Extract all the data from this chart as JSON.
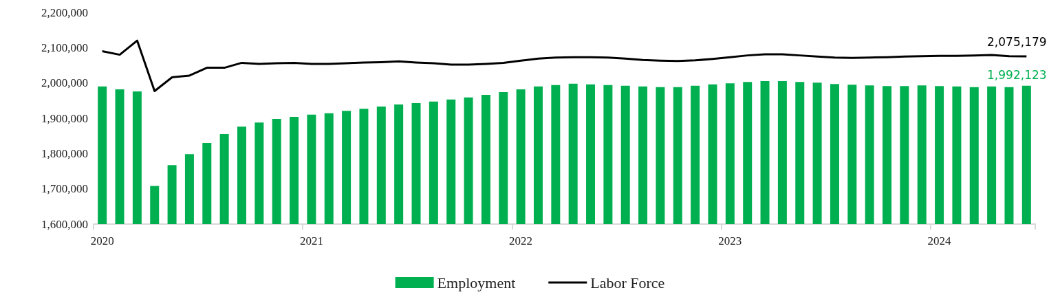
{
  "chart_data": {
    "type": "bar",
    "categories": [
      "2020",
      null,
      null,
      null,
      null,
      null,
      null,
      null,
      null,
      null,
      null,
      null,
      "2021",
      null,
      null,
      null,
      null,
      null,
      null,
      null,
      null,
      null,
      null,
      null,
      "2022",
      null,
      null,
      null,
      null,
      null,
      null,
      null,
      null,
      null,
      null,
      null,
      "2023",
      null,
      null,
      null,
      null,
      null,
      null,
      null,
      null,
      null,
      null,
      null,
      "2024",
      null,
      null,
      null,
      null,
      null
    ],
    "series": [
      {
        "name": "Employment",
        "color": "#00b050",
        "values": [
          1990000,
          1982000,
          1976000,
          1708000,
          1767000,
          1798000,
          1830000,
          1855000,
          1876000,
          1888000,
          1898000,
          1904000,
          1910000,
          1914000,
          1921000,
          1927000,
          1933000,
          1939000,
          1943000,
          1947000,
          1953000,
          1959000,
          1966000,
          1974000,
          1982000,
          1990000,
          1994000,
          1998000,
          1996000,
          1994000,
          1992000,
          1990000,
          1988000,
          1988000,
          1992000,
          1996000,
          1999000,
          2003000,
          2005000,
          2005000,
          2003000,
          2001000,
          1997000,
          1995000,
          1993000,
          1991000,
          1991000,
          1993000,
          1991000,
          1990000,
          1988000,
          1990000,
          1988000,
          1992123
        ],
        "value_labels": [
          null,
          null,
          null,
          null,
          null,
          null,
          null,
          null,
          null,
          null,
          null,
          null,
          null,
          null,
          null,
          null,
          null,
          null,
          null,
          null,
          null,
          null,
          null,
          null,
          null,
          null,
          null,
          null,
          null,
          null,
          null,
          null,
          null,
          null,
          null,
          null,
          null,
          null,
          null,
          null,
          null,
          null,
          null,
          null,
          null,
          null,
          null,
          null,
          null,
          null,
          null,
          null,
          null,
          "1,992,123"
        ]
      },
      {
        "name": "Labor Force",
        "type": "line",
        "color": "#000000",
        "values": [
          2090000,
          2080000,
          2120000,
          1977000,
          2016000,
          2021000,
          2043000,
          2043000,
          2057000,
          2054000,
          2056000,
          2057000,
          2054000,
          2054000,
          2056000,
          2058000,
          2059000,
          2061000,
          2058000,
          2056000,
          2052000,
          2052000,
          2054000,
          2057000,
          2063000,
          2069000,
          2072000,
          2073000,
          2073000,
          2072000,
          2069000,
          2065000,
          2063000,
          2062000,
          2064000,
          2068000,
          2073000,
          2078000,
          2081000,
          2081000,
          2078000,
          2075000,
          2072000,
          2071000,
          2072000,
          2073000,
          2075000,
          2076000,
          2077000,
          2077000,
          2078000,
          2079000,
          2076000,
          2075179
        ],
        "value_labels": [
          null,
          null,
          null,
          null,
          null,
          null,
          null,
          null,
          null,
          null,
          null,
          null,
          null,
          null,
          null,
          null,
          null,
          null,
          null,
          null,
          null,
          null,
          null,
          null,
          null,
          null,
          null,
          null,
          null,
          null,
          null,
          null,
          null,
          null,
          null,
          null,
          null,
          null,
          null,
          null,
          null,
          null,
          null,
          null,
          null,
          null,
          null,
          null,
          null,
          null,
          null,
          null,
          null,
          "2,075,179"
        ]
      }
    ],
    "ylim": [
      1600000,
      2200000
    ],
    "yticks": [
      {
        "value": 1600000,
        "label": "1,600,000"
      },
      {
        "value": 1700000,
        "label": "1,700,000"
      },
      {
        "value": 1800000,
        "label": "1,800,000"
      },
      {
        "value": 1900000,
        "label": "1,900,000"
      },
      {
        "value": 2000000,
        "label": "2,000,000"
      },
      {
        "value": 2100000,
        "label": "2,100,000"
      },
      {
        "value": 2200000,
        "label": "2,200,000"
      }
    ],
    "grid": false,
    "legend": "bottom",
    "marker": "none",
    "line_style": "solid"
  }
}
